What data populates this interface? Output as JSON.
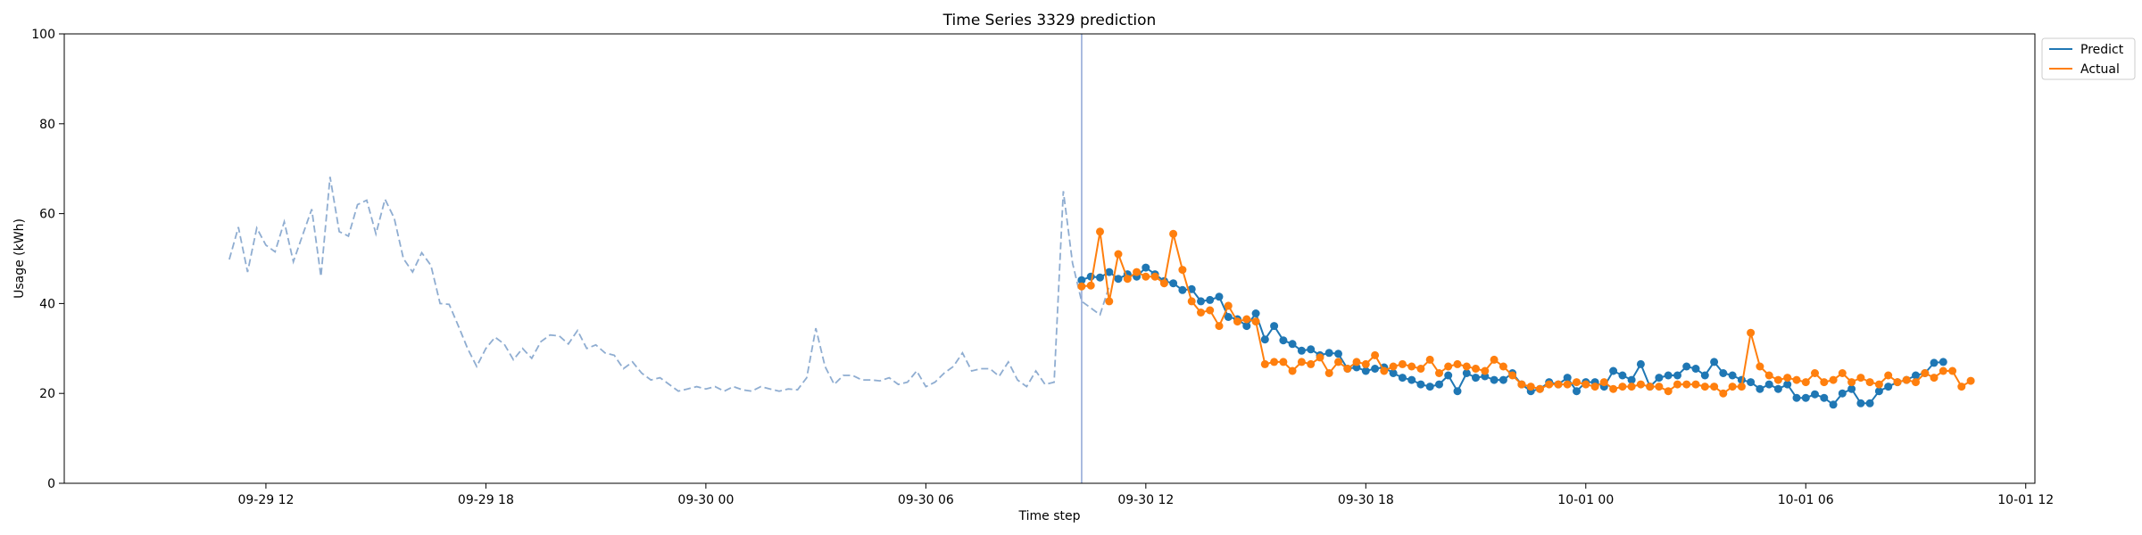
{
  "chart_data": {
    "type": "line",
    "title": "Time Series 3329 prediction",
    "xlabel": "Time step",
    "ylabel": "Usage (kWh)",
    "ylim": [
      0,
      100
    ],
    "yticks": [
      0,
      20,
      40,
      60,
      80,
      100
    ],
    "xlim": [
      "2023-09-29T06:30",
      "2023-10-01T12:15"
    ],
    "xticks": [
      {
        "t": "2023-09-29T12:00",
        "label": "09-29 12"
      },
      {
        "t": "2023-09-29T18:00",
        "label": "09-29 18"
      },
      {
        "t": "2023-09-30T00:00",
        "label": "09-30 00"
      },
      {
        "t": "2023-09-30T06:00",
        "label": "09-30 06"
      },
      {
        "t": "2023-09-30T12:00",
        "label": "09-30 12"
      },
      {
        "t": "2023-09-30T18:00",
        "label": "09-30 18"
      },
      {
        "t": "2023-10-01T00:00",
        "label": "10-01 00"
      },
      {
        "t": "2023-10-01T06:00",
        "label": "10-01 06"
      },
      {
        "t": "2023-10-01T12:00",
        "label": "10-01 12"
      }
    ],
    "interval_minutes": 15,
    "grid": false,
    "legend_position": "top-right, outside plot",
    "split_time": "2023-09-30T10:15",
    "history": {
      "start": "2023-09-29T11:00",
      "style": "dashed",
      "color": "#8fadd1",
      "values": [
        49.8,
        57.0,
        47.0,
        56.8,
        53.0,
        51.5,
        58.2,
        49.3,
        55.2,
        61.0,
        46.0,
        68.2,
        56.0,
        55.0,
        62.0,
        63.0,
        55.5,
        63.2,
        59.0,
        50.0,
        47.0,
        51.3,
        48.5,
        40.0,
        39.8,
        35.0,
        30.0,
        26.0,
        30.0,
        32.5,
        31.0,
        27.5,
        30.0,
        27.8,
        31.5,
        33.0,
        32.8,
        31.0,
        34.0,
        30.0,
        30.8,
        29.0,
        28.5,
        25.5,
        27.0,
        24.5,
        23.0,
        23.5,
        22.0,
        20.5,
        21.0,
        21.5,
        21.0,
        21.5,
        20.5,
        21.5,
        20.8,
        20.5,
        21.5,
        21.0,
        20.5,
        21.0,
        20.8,
        23.5,
        34.5,
        26.0,
        22.0,
        24.0,
        24.0,
        23.0,
        23.0,
        22.8,
        23.5,
        22.0,
        22.5,
        25.0,
        21.5,
        22.5,
        24.5,
        26.0,
        29.0,
        25.0,
        25.5,
        25.5,
        23.8,
        27.0,
        23.0,
        21.5,
        25.0,
        22.0,
        22.5,
        65.0,
        49.0,
        40.5,
        39.0,
        37.5,
        43.8
      ]
    },
    "series": [
      {
        "name": "Predict",
        "color": "#1f77b4",
        "start": "2023-09-30T10:15",
        "values": [
          45.2,
          46.0,
          45.8,
          47.0,
          45.5,
          46.5,
          46.0,
          48.0,
          46.5,
          45.0,
          44.5,
          43.0,
          43.2,
          40.5,
          40.8,
          41.5,
          37.0,
          36.5,
          35.0,
          37.8,
          32.0,
          35.0,
          31.8,
          31.0,
          29.5,
          29.8,
          28.5,
          29.0,
          28.8,
          25.5,
          25.8,
          25.0,
          25.5,
          25.8,
          24.5,
          23.5,
          23.0,
          22.0,
          21.5,
          22.0,
          24.0,
          20.5,
          24.5,
          23.5,
          23.8,
          23.0,
          23.0,
          24.5,
          22.0,
          20.5,
          21.0,
          22.5,
          22.0,
          23.5,
          20.5,
          22.5,
          22.5,
          21.5,
          25.0,
          24.0,
          23.0,
          26.5,
          21.5,
          23.5,
          24.0,
          24.0,
          26.0,
          25.5,
          24.0,
          27.0,
          24.5,
          24.0,
          23.0,
          22.5,
          21.0,
          22.0,
          21.0,
          22.0,
          19.0,
          19.0,
          19.8,
          19.0,
          17.5,
          20.0,
          21.0,
          17.8,
          17.8,
          20.5,
          21.5,
          22.5,
          23.0,
          24.0,
          24.5,
          26.8,
          27.0
        ]
      },
      {
        "name": "Actual",
        "color": "#ff7f0e",
        "start": "2023-09-30T10:15",
        "values": [
          43.8,
          44.0,
          56.0,
          40.5,
          51.0,
          45.5,
          47.0,
          46.0,
          46.0,
          44.5,
          55.5,
          47.5,
          40.5,
          38.0,
          38.5,
          35.0,
          39.5,
          36.0,
          36.5,
          36.0,
          26.5,
          27.0,
          27.0,
          25.0,
          27.0,
          26.5,
          28.0,
          24.5,
          27.0,
          25.5,
          27.0,
          26.5,
          28.5,
          25.0,
          26.0,
          26.5,
          26.0,
          25.5,
          27.5,
          24.5,
          26.0,
          26.5,
          26.0,
          25.5,
          25.0,
          27.5,
          26.0,
          24.0,
          22.0,
          21.5,
          21.0,
          22.0,
          22.0,
          22.0,
          22.5,
          22.0,
          21.5,
          22.5,
          21.0,
          21.5,
          21.5,
          22.0,
          21.5,
          21.5,
          20.5,
          22.0,
          22.0,
          22.0,
          21.5,
          21.5,
          20.0,
          21.5,
          21.5,
          33.5,
          26.0,
          24.0,
          23.0,
          23.5,
          23.0,
          22.5,
          24.5,
          22.5,
          23.0,
          24.5,
          22.5,
          23.5,
          22.5,
          22.0,
          24.0,
          22.5,
          23.0,
          22.5,
          24.5,
          23.5,
          25.0,
          25.0,
          21.5,
          22.8
        ]
      }
    ]
  }
}
